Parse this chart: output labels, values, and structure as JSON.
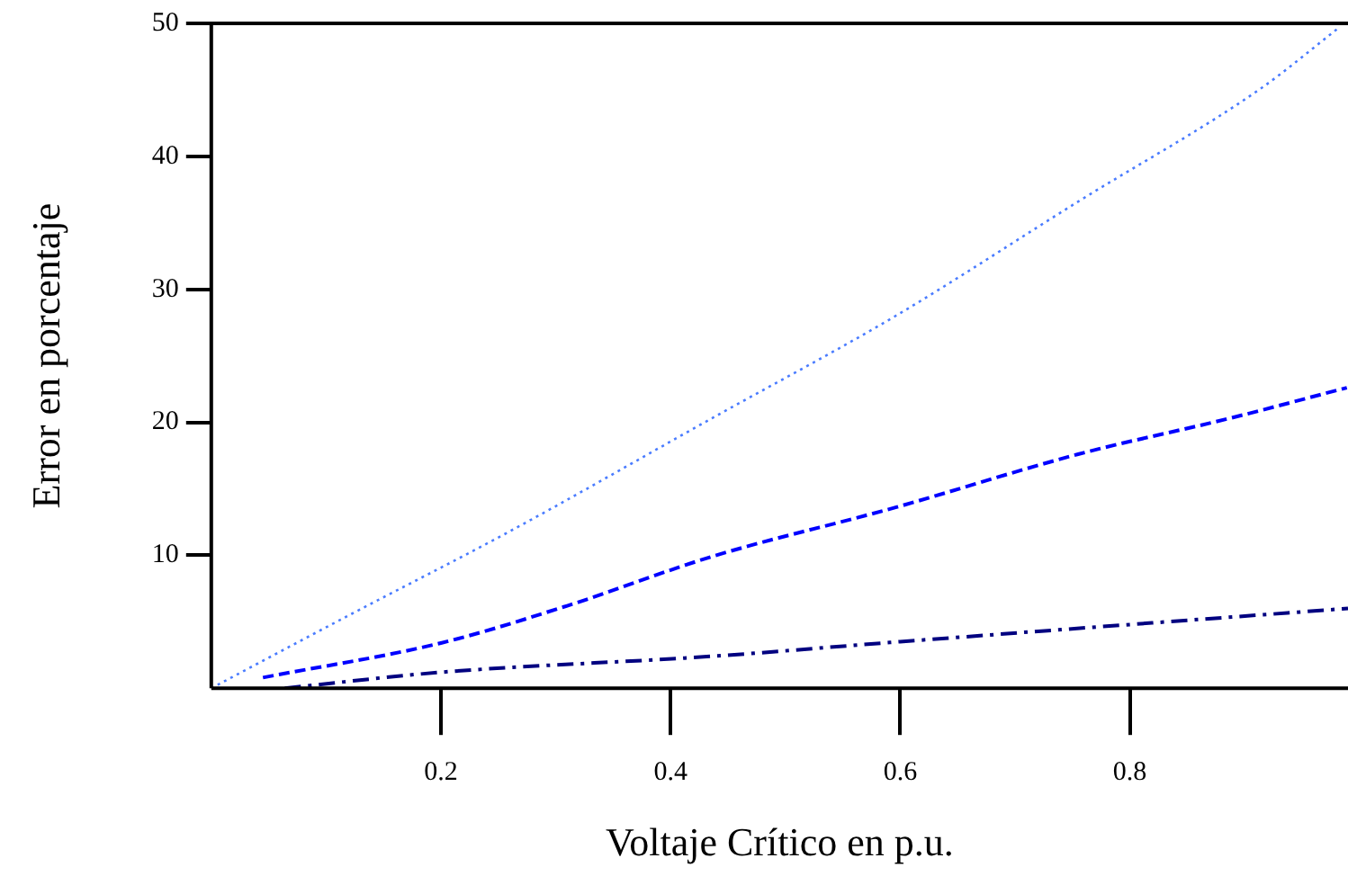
{
  "chart_data": {
    "type": "line",
    "xlabel": "Voltaje Crítico en p.u.",
    "ylabel": "Error en porcentaje",
    "xlim": [
      0,
      0.99
    ],
    "ylim": [
      0,
      50
    ],
    "xticks": [
      0.2,
      0.4,
      0.6,
      0.8
    ],
    "yticks": [
      10,
      20,
      30,
      40,
      50
    ],
    "grid": false,
    "legend": false,
    "marker": "none",
    "series": [
      {
        "color": "#4a7cff",
        "line_style": "dotted",
        "x": [
          0,
          0.118,
          0.26,
          0.436,
          0.596,
          0.755,
          0.914,
          0.981
        ],
        "values": [
          0,
          5.4,
          11.8,
          20.3,
          28.0,
          36.6,
          45.1,
          49.6
        ]
      },
      {
        "color": "#0000ff",
        "line_style": "dashed",
        "x": [
          0.045,
          0.2,
          0.31,
          0.436,
          0.596,
          0.755,
          0.887,
          0.989
        ],
        "values": [
          0.8,
          3.4,
          6.2,
          9.9,
          13.6,
          17.6,
          20.3,
          22.6
        ]
      },
      {
        "color": "#000080",
        "line_style": "dashdot",
        "x": [
          0.064,
          0.2,
          0.436,
          0.6,
          0.99
        ],
        "values": [
          0,
          1.2,
          2.4,
          3.5,
          6.0
        ]
      }
    ]
  }
}
